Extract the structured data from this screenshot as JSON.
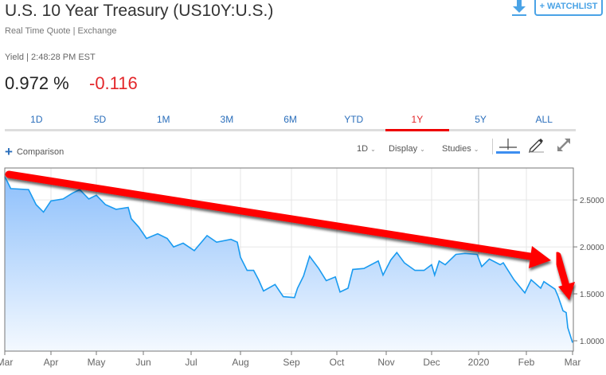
{
  "header": {
    "title": "U.S. 10 Year Treasury (US10Y:U.S.)",
    "subtitle": "Real Time Quote | Exchange",
    "yield_line": "Yield | 2:48:28 PM EST",
    "price": "0.972 %",
    "change": "-0.116",
    "watchlist_label": "+ WATCHLIST",
    "download_icon": "download-icon"
  },
  "tabs": [
    {
      "label": "1D"
    },
    {
      "label": "5D"
    },
    {
      "label": "1M"
    },
    {
      "label": "3M"
    },
    {
      "label": "6M"
    },
    {
      "label": "YTD"
    },
    {
      "label": "1Y",
      "active": true
    },
    {
      "label": "5Y"
    },
    {
      "label": "ALL"
    }
  ],
  "toolbar": {
    "comparison": "Comparison",
    "interval": "1D",
    "display": "Display",
    "studies": "Studies",
    "icons": [
      "crosshair-icon",
      "pencil-icon",
      "expand-icon"
    ]
  },
  "colors": {
    "line": "#1a9bf0",
    "fill_top": "#8ec0fb",
    "fill_bottom": "#f4f9ff",
    "arrow": "#ff0000",
    "change": "#e3262a",
    "accent": "#2a6ebb"
  },
  "chart_data": {
    "type": "area",
    "x_tick_labels": [
      "Mar",
      "Apr",
      "May",
      "Jun",
      "Jul",
      "Aug",
      "Sep",
      "Oct",
      "Nov",
      "Dec",
      "2020",
      "Feb",
      "Mar"
    ],
    "y_tick_labels": [
      "1.0000",
      "1.5000",
      "2.0000",
      "2.5000"
    ],
    "y_ticks": [
      1.0,
      1.5,
      2.0,
      2.5
    ],
    "ylim": [
      0.89,
      2.84
    ],
    "grid": true,
    "annotations": [
      "red downward trend arrow across the year",
      "red steep downward arrow at end of Feb 2020"
    ],
    "series": [
      {
        "values": [
          [
            "2019-03-01",
            2.75
          ],
          [
            "2019-03-05",
            2.62
          ],
          [
            "2019-03-17",
            2.61
          ],
          [
            "2019-03-22",
            2.45
          ],
          [
            "2019-03-27",
            2.37
          ],
          [
            "2019-04-01",
            2.49
          ],
          [
            "2019-04-09",
            2.51
          ],
          [
            "2019-04-15",
            2.57
          ],
          [
            "2019-04-20",
            2.61
          ],
          [
            "2019-04-26",
            2.51
          ],
          [
            "2019-05-01",
            2.55
          ],
          [
            "2019-05-07",
            2.45
          ],
          [
            "2019-05-14",
            2.4
          ],
          [
            "2019-05-22",
            2.42
          ],
          [
            "2019-05-24",
            2.3
          ],
          [
            "2019-05-29",
            2.21
          ],
          [
            "2019-06-03",
            2.09
          ],
          [
            "2019-06-10",
            2.14
          ],
          [
            "2019-06-16",
            2.09
          ],
          [
            "2019-06-20",
            2.0
          ],
          [
            "2019-06-26",
            2.04
          ],
          [
            "2019-07-03",
            1.96
          ],
          [
            "2019-07-11",
            2.12
          ],
          [
            "2019-07-17",
            2.05
          ],
          [
            "2019-07-26",
            2.08
          ],
          [
            "2019-07-30",
            2.05
          ],
          [
            "2019-08-01",
            1.89
          ],
          [
            "2019-08-05",
            1.75
          ],
          [
            "2019-08-09",
            1.75
          ],
          [
            "2019-08-12",
            1.65
          ],
          [
            "2019-08-15",
            1.53
          ],
          [
            "2019-08-22",
            1.6
          ],
          [
            "2019-08-27",
            1.47
          ],
          [
            "2019-09-03",
            1.46
          ],
          [
            "2019-09-05",
            1.56
          ],
          [
            "2019-09-09",
            1.69
          ],
          [
            "2019-09-13",
            1.9
          ],
          [
            "2019-09-19",
            1.77
          ],
          [
            "2019-09-24",
            1.64
          ],
          [
            "2019-09-30",
            1.68
          ],
          [
            "2019-10-03",
            1.52
          ],
          [
            "2019-10-08",
            1.56
          ],
          [
            "2019-10-11",
            1.76
          ],
          [
            "2019-10-18",
            1.77
          ],
          [
            "2019-10-27",
            1.85
          ],
          [
            "2019-10-30",
            1.7
          ],
          [
            "2019-11-04",
            1.86
          ],
          [
            "2019-11-08",
            1.94
          ],
          [
            "2019-11-13",
            1.83
          ],
          [
            "2019-11-20",
            1.75
          ],
          [
            "2019-11-26",
            1.75
          ],
          [
            "2019-12-01",
            1.81
          ],
          [
            "2019-12-03",
            1.7
          ],
          [
            "2019-12-06",
            1.85
          ],
          [
            "2019-12-10",
            1.81
          ],
          [
            "2019-12-17",
            1.92
          ],
          [
            "2019-12-23",
            1.93
          ],
          [
            "2019-12-31",
            1.92
          ],
          [
            "2020-01-03",
            1.79
          ],
          [
            "2020-01-08",
            1.87
          ],
          [
            "2020-01-15",
            1.81
          ],
          [
            "2020-01-17",
            1.83
          ],
          [
            "2020-01-24",
            1.65
          ],
          [
            "2020-01-31",
            1.51
          ],
          [
            "2020-02-04",
            1.65
          ],
          [
            "2020-02-10",
            1.56
          ],
          [
            "2020-02-12",
            1.63
          ],
          [
            "2020-02-19",
            1.55
          ],
          [
            "2020-02-21",
            1.47
          ],
          [
            "2020-02-24",
            1.32
          ],
          [
            "2020-02-26",
            1.3
          ],
          [
            "2020-02-27",
            1.14
          ],
          [
            "2020-03-02",
            0.98
          ]
        ]
      }
    ]
  }
}
